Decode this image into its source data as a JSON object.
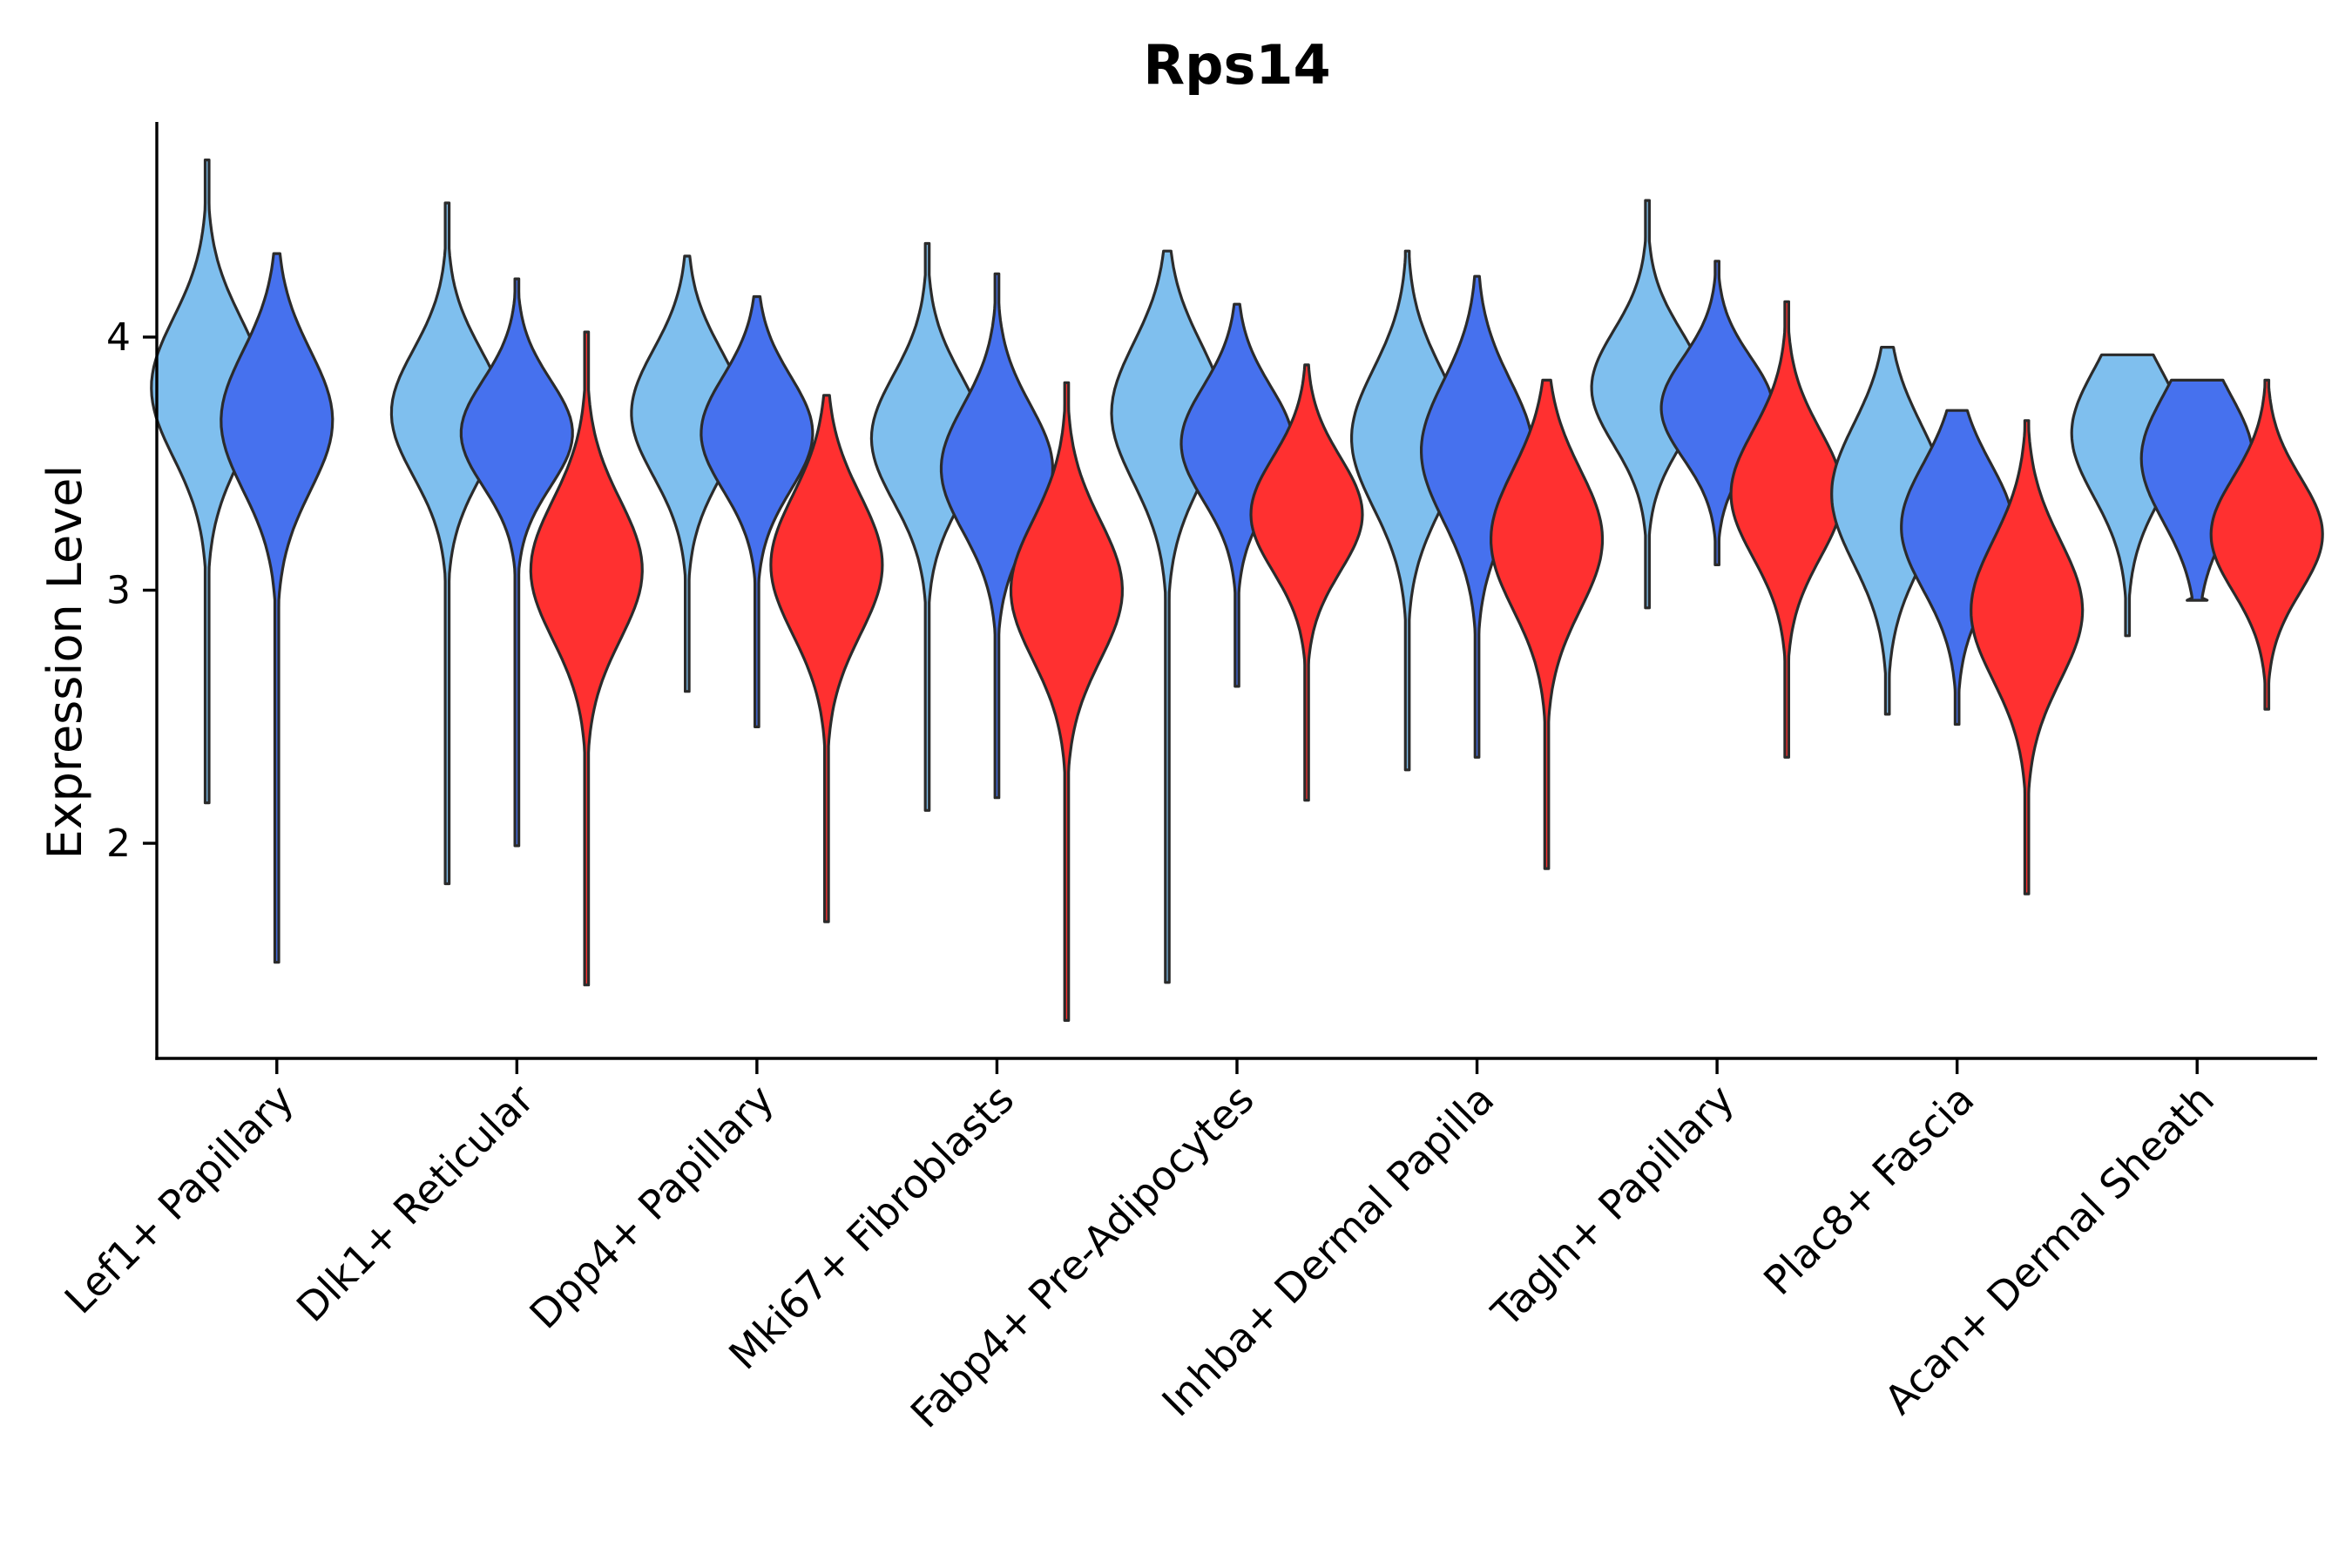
{
  "chart_data": {
    "type": "violin",
    "title": "Rps14",
    "xlabel": "",
    "ylabel": "Expression Level",
    "yticks": [
      2,
      3,
      4
    ],
    "ylim": [
      1.15,
      4.85
    ],
    "grid": false,
    "legend": "none",
    "series_colors": [
      "#7fbfee",
      "#4671ee",
      "#ff3030"
    ],
    "categories": [
      "Lef1+ Papillary",
      "Dlk1+ Reticular",
      "Dpp4+ Papillary",
      "Mki67+ Fibroblasts",
      "Fabp4+ Pre-Adipocytes",
      "Inhba+ Dermal Papilla",
      "Tagln+ Papillary",
      "Plac8+ Fascia",
      "Acan+ Dermal Sheath"
    ],
    "groups": [
      {
        "violins": [
          {
            "series": 0,
            "min": 2.16,
            "max": 4.7,
            "median": 3.8,
            "spread": 0.55
          },
          {
            "series": 1,
            "min": 1.53,
            "max": 4.33,
            "median": 3.67,
            "spread": 0.55
          }
        ]
      },
      {
        "violins": [
          {
            "series": 0,
            "min": 1.84,
            "max": 4.53,
            "median": 3.7,
            "spread": 0.5
          },
          {
            "series": 1,
            "min": 1.99,
            "max": 4.23,
            "median": 3.62,
            "spread": 0.42
          },
          {
            "series": 2,
            "min": 1.44,
            "max": 4.02,
            "median": 3.08,
            "spread": 0.55
          }
        ]
      },
      {
        "violins": [
          {
            "series": 0,
            "min": 2.6,
            "max": 4.32,
            "median": 3.7,
            "spread": 0.5
          },
          {
            "series": 1,
            "min": 2.46,
            "max": 4.16,
            "median": 3.62,
            "spread": 0.45
          },
          {
            "series": 2,
            "min": 1.69,
            "max": 3.77,
            "median": 3.1,
            "spread": 0.55
          }
        ]
      },
      {
        "violins": [
          {
            "series": 0,
            "min": 2.13,
            "max": 4.37,
            "median": 3.6,
            "spread": 0.5
          },
          {
            "series": 1,
            "min": 2.18,
            "max": 4.25,
            "median": 3.48,
            "spread": 0.5
          },
          {
            "series": 2,
            "min": 1.3,
            "max": 3.82,
            "median": 3.0,
            "spread": 0.55
          }
        ]
      },
      {
        "violins": [
          {
            "series": 0,
            "min": 1.45,
            "max": 4.34,
            "median": 3.7,
            "spread": 0.55
          },
          {
            "series": 1,
            "min": 2.62,
            "max": 4.13,
            "median": 3.58,
            "spread": 0.45
          },
          {
            "series": 2,
            "min": 2.17,
            "max": 3.89,
            "median": 3.3,
            "spread": 0.45
          }
        ]
      },
      {
        "violins": [
          {
            "series": 0,
            "min": 2.29,
            "max": 4.34,
            "median": 3.6,
            "spread": 0.55
          },
          {
            "series": 1,
            "min": 2.34,
            "max": 4.24,
            "median": 3.55,
            "spread": 0.55
          },
          {
            "series": 2,
            "min": 1.9,
            "max": 3.83,
            "median": 3.2,
            "spread": 0.55
          }
        ]
      },
      {
        "violins": [
          {
            "series": 0,
            "min": 2.93,
            "max": 4.54,
            "median": 3.8,
            "spread": 0.45
          },
          {
            "series": 1,
            "min": 3.1,
            "max": 4.3,
            "median": 3.72,
            "spread": 0.4
          },
          {
            "series": 2,
            "min": 2.34,
            "max": 4.14,
            "median": 3.38,
            "spread": 0.5
          }
        ]
      },
      {
        "violins": [
          {
            "series": 0,
            "min": 2.51,
            "max": 3.96,
            "median": 3.38,
            "spread": 0.55
          },
          {
            "series": 1,
            "min": 2.47,
            "max": 3.71,
            "median": 3.25,
            "spread": 0.5
          },
          {
            "series": 2,
            "min": 1.8,
            "max": 3.67,
            "median": 2.92,
            "spread": 0.55
          }
        ]
      },
      {
        "violins": [
          {
            "series": 0,
            "min": 2.82,
            "max": 3.93,
            "median": 3.62,
            "spread": 0.5,
            "flatTop": true
          },
          {
            "series": 1,
            "min": 2.96,
            "max": 3.83,
            "median": 3.52,
            "spread": 0.5,
            "flatTop": true,
            "flatBottom": true
          },
          {
            "series": 2,
            "min": 2.53,
            "max": 3.83,
            "median": 3.22,
            "spread": 0.45
          }
        ]
      }
    ]
  }
}
